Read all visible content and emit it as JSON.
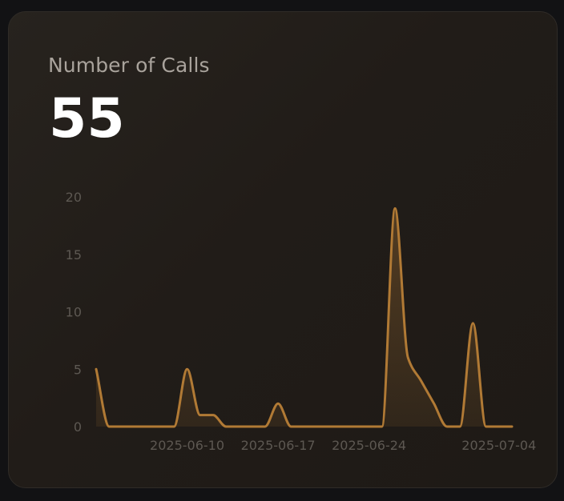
{
  "card": {
    "title": "Number of Calls",
    "metric_value": "55"
  },
  "colors": {
    "line": "#b17a35",
    "area": "#b17a35",
    "tick_text": "#5d5852",
    "card_background": "#221d19",
    "metric_text": "#ffffff",
    "title_text": "#a9a39c"
  },
  "chart_data": {
    "type": "area",
    "title": "",
    "xlabel": "",
    "ylabel": "",
    "ylim": [
      0,
      20
    ],
    "y_ticks": [
      0,
      5,
      10,
      15,
      20
    ],
    "x_ticks": [
      "2025-06-10",
      "2025-06-17",
      "2025-06-24",
      "2025-07-04"
    ],
    "grid": false,
    "x": [
      "2025-06-03",
      "2025-06-04",
      "2025-06-05",
      "2025-06-06",
      "2025-06-07",
      "2025-06-08",
      "2025-06-09",
      "2025-06-10",
      "2025-06-11",
      "2025-06-12",
      "2025-06-13",
      "2025-06-14",
      "2025-06-15",
      "2025-06-16",
      "2025-06-17",
      "2025-06-18",
      "2025-06-19",
      "2025-06-20",
      "2025-06-21",
      "2025-06-22",
      "2025-06-23",
      "2025-06-24",
      "2025-06-25",
      "2025-06-26",
      "2025-06-27",
      "2025-06-28",
      "2025-06-29",
      "2025-06-30",
      "2025-07-01",
      "2025-07-02",
      "2025-07-03",
      "2025-07-04",
      "2025-07-05"
    ],
    "series": [
      {
        "values": [
          5,
          0,
          0,
          0,
          0,
          0,
          0,
          5,
          1,
          1,
          0,
          0,
          0,
          0,
          2,
          0,
          0,
          0,
          0,
          0,
          0,
          0,
          0,
          19,
          6,
          4,
          2,
          0,
          0,
          9,
          0,
          0,
          0
        ]
      }
    ]
  }
}
